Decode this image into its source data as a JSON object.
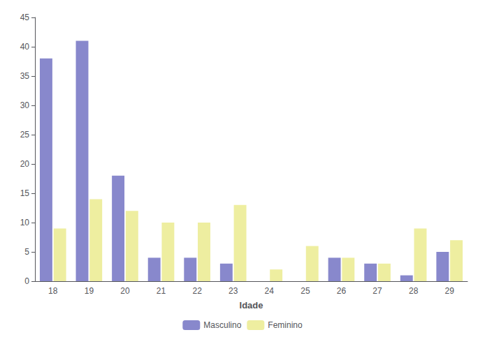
{
  "chart_data": {
    "type": "bar",
    "xlabel": "Idade",
    "categories": [
      "18",
      "19",
      "20",
      "21",
      "22",
      "23",
      "24",
      "25",
      "26",
      "27",
      "28",
      "29"
    ],
    "series": [
      {
        "name": "Masculino",
        "color": "#8888cc",
        "values": [
          38,
          41,
          18,
          4,
          4,
          3,
          0,
          0,
          4,
          3,
          1,
          5
        ]
      },
      {
        "name": "Feminino",
        "color": "#eeeea0",
        "values": [
          9,
          14,
          12,
          10,
          10,
          13,
          2,
          6,
          4,
          3,
          9,
          7
        ]
      }
    ],
    "ylim": [
      0,
      45
    ],
    "yticks": [
      0,
      5,
      10,
      15,
      20,
      25,
      30,
      35,
      40,
      45
    ],
    "grid": false,
    "legend": "bottom"
  }
}
